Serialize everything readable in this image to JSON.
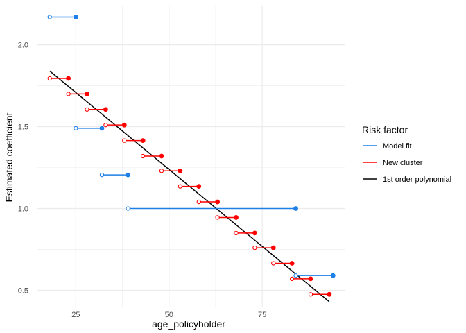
{
  "chart_data": {
    "type": "line",
    "title": "",
    "xlabel": "age_policyholder",
    "ylabel": "Estimated coefficient",
    "xlim": [
      14.7,
      97.3
    ],
    "ylim": [
      0.4,
      2.24
    ],
    "x_ticks": [
      25,
      50,
      75
    ],
    "y_ticks": [
      0.5,
      1.0,
      1.5,
      2.0
    ],
    "x_tick_labels": [
      "25",
      "50",
      "75"
    ],
    "y_tick_labels": [
      "0.5",
      "1.0",
      "1.5",
      "2.0"
    ],
    "grid": true,
    "legend": {
      "title": "Risk factor",
      "placement": "right",
      "entries": [
        "Model fit",
        "New cluster",
        "1st order polynomial"
      ]
    },
    "colors": {
      "model_fit": "#1E7FE8",
      "new_cluster": "#FF0000",
      "polynomial": "#000000"
    },
    "model_fit_segments": [
      {
        "x_start": 18,
        "x_end": 25,
        "y": 2.17
      },
      {
        "x_start": 25,
        "x_end": 32,
        "y": 1.49
      },
      {
        "x_start": 32,
        "x_end": 39,
        "y": 1.205
      },
      {
        "x_start": 39,
        "x_end": 84,
        "y": 1.0
      },
      {
        "x_start": 84,
        "x_end": 94,
        "y": 0.59
      }
    ],
    "new_cluster_segments": [
      {
        "x_start": 18,
        "x_end": 23,
        "y": 1.795
      },
      {
        "x_start": 23,
        "x_end": 28,
        "y": 1.7
      },
      {
        "x_start": 28,
        "x_end": 33,
        "y": 1.605
      },
      {
        "x_start": 33,
        "x_end": 38,
        "y": 1.51
      },
      {
        "x_start": 38,
        "x_end": 43,
        "y": 1.415
      },
      {
        "x_start": 43,
        "x_end": 48,
        "y": 1.32
      },
      {
        "x_start": 48,
        "x_end": 53,
        "y": 1.23
      },
      {
        "x_start": 53,
        "x_end": 58,
        "y": 1.135
      },
      {
        "x_start": 58,
        "x_end": 63,
        "y": 1.04
      },
      {
        "x_start": 63,
        "x_end": 68,
        "y": 0.945
      },
      {
        "x_start": 68,
        "x_end": 73,
        "y": 0.85
      },
      {
        "x_start": 73,
        "x_end": 78,
        "y": 0.76
      },
      {
        "x_start": 78,
        "x_end": 83,
        "y": 0.665
      },
      {
        "x_start": 83,
        "x_end": 88,
        "y": 0.57
      },
      {
        "x_start": 88,
        "x_end": 93,
        "y": 0.475
      }
    ],
    "polynomial_line": {
      "x": [
        18,
        93
      ],
      "y": [
        1.84,
        0.43
      ]
    }
  }
}
